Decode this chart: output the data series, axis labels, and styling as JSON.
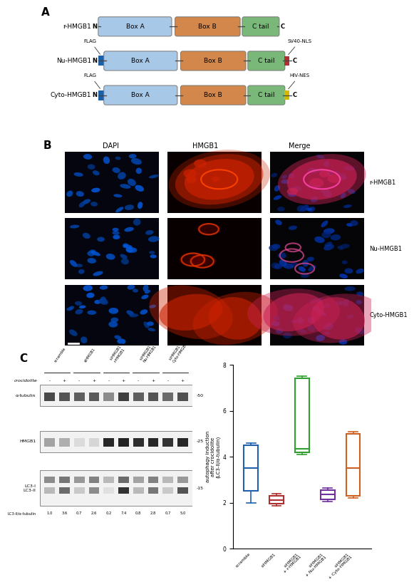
{
  "panel_A": {
    "constructs": [
      {
        "name": "r-HMGB1",
        "has_flag": false,
        "tag": null,
        "tag_color": null,
        "tag_label": null
      },
      {
        "name": "Nu-HMGB1",
        "has_flag": true,
        "tag": "SV40-NLS",
        "tag_color": "#b03030",
        "tag_label": "SV40-NLS"
      },
      {
        "name": "Cyto-HMGB1",
        "has_flag": true,
        "tag": "HIV-NES",
        "tag_color": "#d4b800",
        "tag_label": "HIV-NES"
      }
    ],
    "box_a_color": "#a8c8e8",
    "box_b_color": "#d4874a",
    "ctail_color": "#7ab87a",
    "flag_color": "#1a5fa8",
    "line_color": "#444444"
  },
  "panel_B": {
    "rows": [
      "r-HMGB1",
      "Nu-HMGB1",
      "Cyto-HMGB1"
    ],
    "cols": [
      "DAPI",
      "HMGB1",
      "Merge"
    ]
  },
  "panel_C_wb": {
    "col_labels": [
      "scramble",
      "siHMGB1",
      "siHMGB1 +\nr-HMGB1",
      "siHMGB1 +\nNu-HMGB1",
      "siHMGB1 +\nCyto-HMGB1"
    ],
    "crocidolite": [
      "-",
      "+",
      "-",
      "+",
      "-",
      "+",
      "-",
      "+",
      "-",
      "+"
    ],
    "kda_labels": [
      "-50",
      "-25",
      "-15"
    ],
    "lc3_values": [
      "1.0",
      "3.6",
      "0.7",
      "2.6",
      "0.2",
      "7.4",
      "0.8",
      "2.8",
      "0.7",
      "5.0"
    ],
    "tub_alpha": [
      0.75,
      0.7,
      0.65,
      0.68,
      0.45,
      0.8,
      0.65,
      0.7,
      0.6,
      0.72
    ],
    "hmgb1_alpha": [
      0.35,
      0.3,
      0.1,
      0.12,
      0.9,
      0.92,
      0.88,
      0.9,
      0.85,
      0.9
    ],
    "lc3i_alpha": [
      0.45,
      0.55,
      0.4,
      0.5,
      0.25,
      0.6,
      0.35,
      0.5,
      0.25,
      0.4
    ],
    "lc3ii_alpha": [
      0.25,
      0.6,
      0.18,
      0.45,
      0.08,
      0.85,
      0.25,
      0.55,
      0.18,
      0.7
    ]
  },
  "panel_C_box": {
    "colors": [
      "#2060b0",
      "#b03030",
      "#30a030",
      "#7030a0",
      "#d06020"
    ],
    "boxes": [
      {
        "q1": 2.5,
        "median": 3.5,
        "q3": 4.5,
        "min": 2.0,
        "max": 4.6
      },
      {
        "q1": 1.95,
        "median": 2.1,
        "q3": 2.3,
        "min": 1.85,
        "max": 2.4
      },
      {
        "q1": 4.2,
        "median": 4.35,
        "q3": 7.4,
        "min": 4.1,
        "max": 7.5
      },
      {
        "q1": 2.15,
        "median": 2.35,
        "q3": 2.55,
        "min": 2.05,
        "max": 2.65
      },
      {
        "q1": 2.3,
        "median": 3.5,
        "q3": 5.0,
        "min": 2.2,
        "max": 5.1
      }
    ],
    "cat_labels": [
      "scramble",
      "siHMGB1",
      "siHMGB1\n+ r-HMGB1",
      "siHMGB1\n+ Nu-HMGB1",
      "siHMGB1\n+ Cyto-HMGB1"
    ],
    "ylabel": "autophagy induction\nafter crocidolite\n(LC3-II/α-tubulin)",
    "ylim": [
      0,
      8
    ],
    "yticks": [
      0,
      2,
      4,
      6,
      8
    ]
  }
}
